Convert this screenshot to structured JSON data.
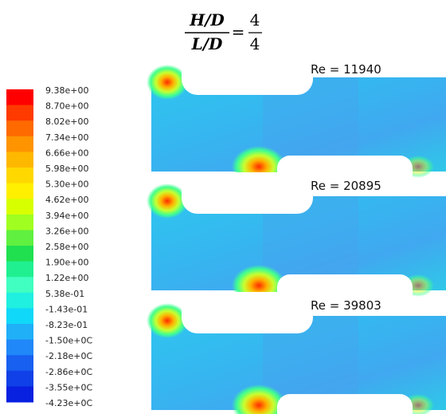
{
  "header": {
    "left_numerator": "H/D",
    "left_denominator": "L/D",
    "equals": "=",
    "right_numerator": "4",
    "right_denominator": "4"
  },
  "colorbar": {
    "labels": [
      "9.38e+00",
      "8.70e+00",
      "8.02e+00",
      "7.34e+00",
      "6.66e+00",
      "5.98e+00",
      "5.30e+00",
      "4.62e+00",
      "3.94e+00",
      "3.26e+00",
      "2.58e+00",
      "1.90e+00",
      "1.22e+00",
      "5.38e-01",
      "-1.43e-01",
      "-8.23e-01",
      "-1.50e+0C",
      "-2.18e+0C",
      "-2.86e+0C",
      "-3.55e+0C",
      "-4.23e+0C"
    ]
  },
  "panels": [
    {
      "label": "Re = 11940"
    },
    {
      "label": "Re = 20895"
    },
    {
      "label": "Re = 39803"
    }
  ]
}
